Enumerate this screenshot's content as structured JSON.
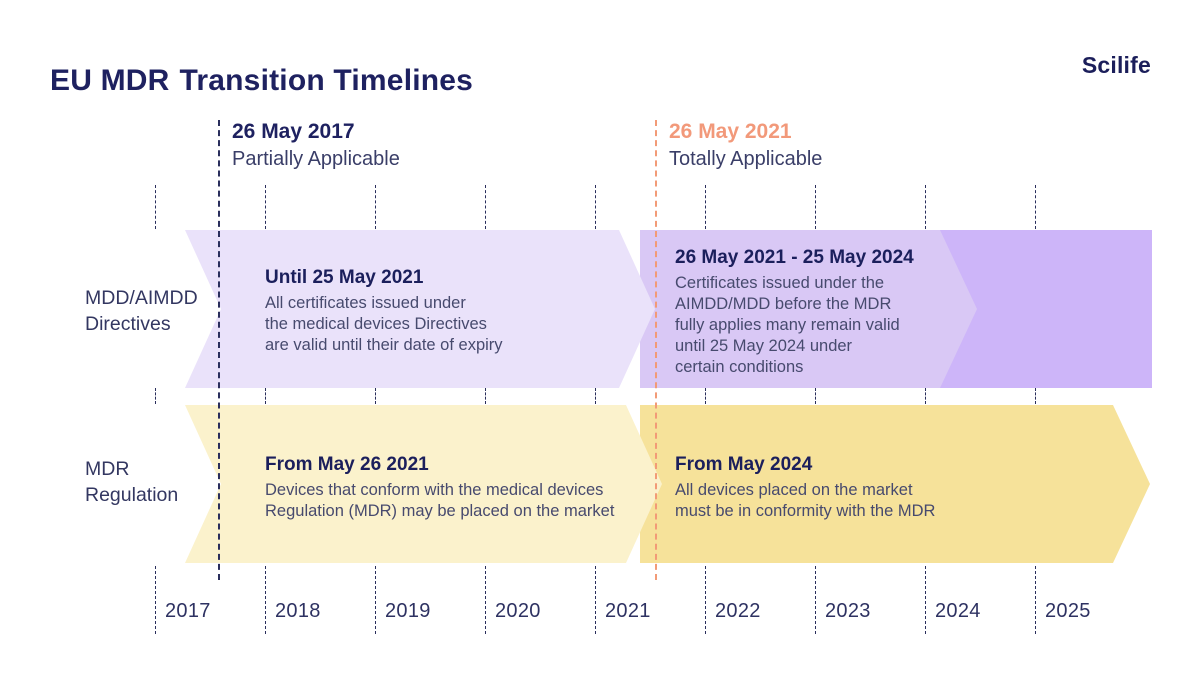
{
  "header": {
    "title_bold": "EU MDR",
    "title_rest": "Transition Timelines",
    "logo": "Scilife"
  },
  "milestones": [
    {
      "date": "26 May 2017",
      "label": "Partially Applicable",
      "line_color": "#2a2e5c",
      "date_color": "#1e2160"
    },
    {
      "date": "26 May 2021",
      "label": "Totally Applicable",
      "line_color": "#f29b77",
      "date_color": "#f2997a"
    }
  ],
  "rows": [
    {
      "label": "MDD/AIMDD\nDirectives",
      "segments": [
        {
          "heading": "Until 25 May 2021",
          "body": "All certificates issued under\nthe medical devices Directives\nare valid until their date of expiry",
          "color": "#eae2fa"
        },
        {
          "heading": "26 May 2021 - 25 May 2024",
          "body": "Certificates issued under the\nAIMDD/MDD before the MDR\nfully applies many remain valid\nuntil 25 May 2024 under\ncertain conditions",
          "color": "#d9c8f5"
        },
        {
          "heading": "",
          "body": "",
          "color": "#cdb5f9"
        }
      ]
    },
    {
      "label": "MDR\nRegulation",
      "segments": [
        {
          "heading": "From May 26 2021",
          "body": "Devices that conform with the medical devices\nRegulation (MDR) may be placed on the market",
          "color": "#fbf2cc"
        },
        {
          "heading": "From May 2024",
          "body": "All devices placed on the market\nmust be in conformity with the MDR",
          "color": "#f6e29a"
        }
      ]
    }
  ],
  "timeline": {
    "years": [
      "2017",
      "2018",
      "2019",
      "2020",
      "2021",
      "2022",
      "2023",
      "2024",
      "2025"
    ]
  },
  "colors": {
    "navy_heading": "#1b1f5c",
    "body_text": "#474a6e",
    "orange_accent": "#f2997a",
    "tick_navy": "#2a2e5c",
    "background": "#ffffff"
  }
}
